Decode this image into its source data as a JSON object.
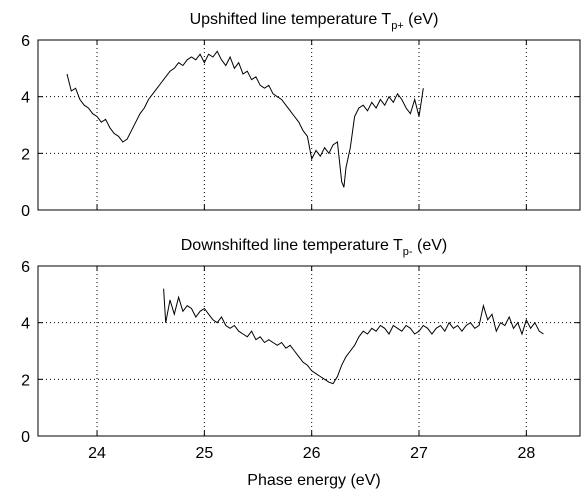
{
  "chart_data": [
    {
      "type": "line",
      "title": "Upshifted line temperature T",
      "title_subscript": "p+",
      "title_suffix": " (eV)",
      "xlabel": "",
      "ylabel": "",
      "xlim": [
        23.45,
        28.5
      ],
      "ylim": [
        0,
        6
      ],
      "yticks": [
        "0",
        "2",
        "4",
        "6"
      ],
      "xticks": [
        24,
        25,
        26,
        27,
        28
      ],
      "grid": "dotted",
      "series": [
        {
          "x": [
            23.72,
            23.76,
            23.8,
            23.84,
            23.88,
            23.92,
            23.96,
            24.0,
            24.04,
            24.08,
            24.12,
            24.16,
            24.2,
            24.24,
            24.28,
            24.32,
            24.36,
            24.4,
            24.44,
            24.48,
            24.52,
            24.56,
            24.6,
            24.64,
            24.68,
            24.72,
            24.76,
            24.8,
            24.84,
            24.88,
            24.92,
            24.96,
            25.0,
            25.04,
            25.08,
            25.12,
            25.16,
            25.2,
            25.24,
            25.28,
            25.32,
            25.36,
            25.4,
            25.44,
            25.48,
            25.52,
            25.56,
            25.6,
            25.64,
            25.68,
            25.72,
            25.76,
            25.8,
            25.84,
            25.88,
            25.92,
            25.96,
            26.0,
            26.04,
            26.08,
            26.12,
            26.16,
            26.2,
            26.24,
            26.28,
            26.3,
            26.32,
            26.36,
            26.4,
            26.44,
            26.48,
            26.52,
            26.56,
            26.6,
            26.64,
            26.68,
            26.72,
            26.76,
            26.8,
            26.84,
            26.88,
            26.92,
            26.96,
            27.0,
            27.02,
            27.04
          ],
          "y": [
            4.8,
            4.2,
            4.3,
            3.9,
            3.7,
            3.6,
            3.4,
            3.3,
            3.1,
            3.2,
            2.9,
            2.7,
            2.6,
            2.4,
            2.5,
            2.8,
            3.1,
            3.4,
            3.6,
            3.9,
            4.1,
            4.3,
            4.5,
            4.7,
            4.9,
            5.0,
            5.2,
            5.1,
            5.3,
            5.4,
            5.3,
            5.5,
            5.2,
            5.5,
            5.4,
            5.6,
            5.3,
            5.1,
            5.4,
            5.0,
            5.2,
            4.8,
            4.9,
            4.6,
            4.7,
            4.4,
            4.3,
            4.4,
            4.1,
            4.0,
            3.9,
            3.7,
            3.5,
            3.3,
            3.1,
            2.8,
            2.6,
            1.8,
            2.1,
            1.9,
            2.2,
            2.0,
            2.3,
            2.4,
            1.0,
            0.8,
            1.5,
            2.2,
            3.3,
            3.6,
            3.7,
            3.5,
            3.8,
            3.6,
            3.9,
            3.7,
            4.0,
            3.8,
            4.1,
            3.9,
            3.6,
            3.4,
            3.9,
            3.3,
            3.8,
            4.3
          ]
        }
      ]
    },
    {
      "type": "line",
      "title": "Downshifted line temperature T",
      "title_subscript": "p-",
      "title_suffix": " (eV)",
      "xlabel": "Phase energy (eV)",
      "ylabel": "",
      "xlim": [
        23.45,
        28.5
      ],
      "ylim": [
        0,
        6
      ],
      "yticks": [
        "0",
        "2",
        "4",
        "6"
      ],
      "xticks": [
        24,
        25,
        26,
        27,
        28
      ],
      "grid": "dotted",
      "series": [
        {
          "x": [
            24.62,
            24.64,
            24.68,
            24.72,
            24.76,
            24.8,
            24.84,
            24.88,
            24.92,
            24.96,
            25.0,
            25.04,
            25.08,
            25.12,
            25.16,
            25.2,
            25.24,
            25.28,
            25.32,
            25.36,
            25.4,
            25.44,
            25.48,
            25.52,
            25.56,
            25.6,
            25.64,
            25.68,
            25.72,
            25.76,
            25.8,
            25.84,
            25.88,
            25.92,
            25.96,
            26.0,
            26.04,
            26.08,
            26.12,
            26.16,
            26.2,
            26.24,
            26.28,
            26.32,
            26.36,
            26.4,
            26.44,
            26.48,
            26.52,
            26.56,
            26.6,
            26.64,
            26.68,
            26.72,
            26.76,
            26.8,
            26.84,
            26.88,
            26.92,
            26.96,
            27.0,
            27.04,
            27.08,
            27.12,
            27.16,
            27.2,
            27.24,
            27.28,
            27.32,
            27.36,
            27.4,
            27.44,
            27.48,
            27.52,
            27.56,
            27.6,
            27.64,
            27.68,
            27.72,
            27.76,
            27.8,
            27.84,
            27.88,
            27.92,
            27.96,
            28.0,
            28.04,
            28.08,
            28.12,
            28.16
          ],
          "y": [
            5.2,
            4.0,
            4.8,
            4.3,
            4.9,
            4.4,
            4.6,
            4.5,
            4.2,
            4.4,
            4.5,
            4.3,
            4.1,
            4.0,
            4.2,
            3.9,
            3.8,
            3.9,
            3.7,
            3.6,
            3.5,
            3.7,
            3.4,
            3.5,
            3.3,
            3.4,
            3.3,
            3.2,
            3.3,
            3.1,
            3.2,
            3.0,
            2.8,
            2.6,
            2.5,
            2.3,
            2.2,
            2.1,
            2.0,
            1.9,
            1.85,
            2.1,
            2.5,
            2.8,
            3.0,
            3.2,
            3.5,
            3.7,
            3.6,
            3.8,
            3.7,
            3.9,
            3.8,
            3.6,
            3.9,
            3.8,
            3.7,
            3.9,
            3.8,
            3.6,
            3.7,
            3.9,
            3.8,
            3.6,
            3.8,
            3.9,
            3.7,
            4.0,
            3.8,
            3.9,
            3.7,
            3.9,
            4.0,
            3.8,
            3.9,
            4.6,
            4.1,
            4.3,
            3.7,
            4.0,
            3.9,
            4.2,
            3.8,
            4.0,
            3.6,
            4.1,
            3.8,
            4.0,
            3.7,
            3.6
          ]
        }
      ]
    }
  ]
}
